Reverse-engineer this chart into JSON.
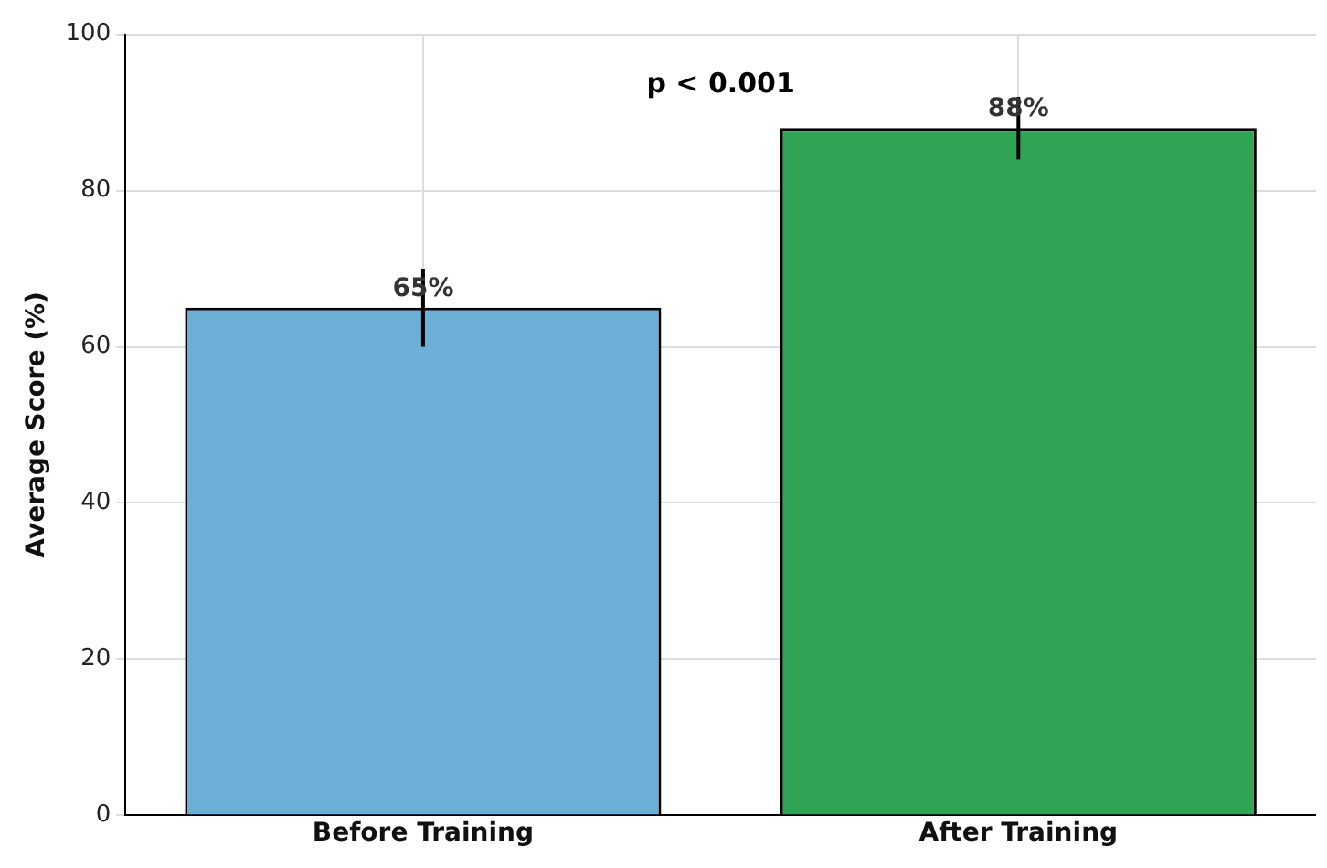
{
  "chart_data": {
    "type": "bar",
    "categories": [
      "Before Training",
      "After Training"
    ],
    "values": [
      65,
      88
    ],
    "colors": [
      "#6baed6",
      "#31a354"
    ],
    "errors": [
      5,
      4
    ],
    "value_labels": [
      "65%",
      "88%"
    ],
    "ylabel": "Average Score (%)",
    "ylim": [
      0,
      100
    ],
    "yticks": [
      0,
      20,
      40,
      60,
      80,
      100
    ],
    "grid": true,
    "annotations": [
      "p < 0.001"
    ]
  }
}
